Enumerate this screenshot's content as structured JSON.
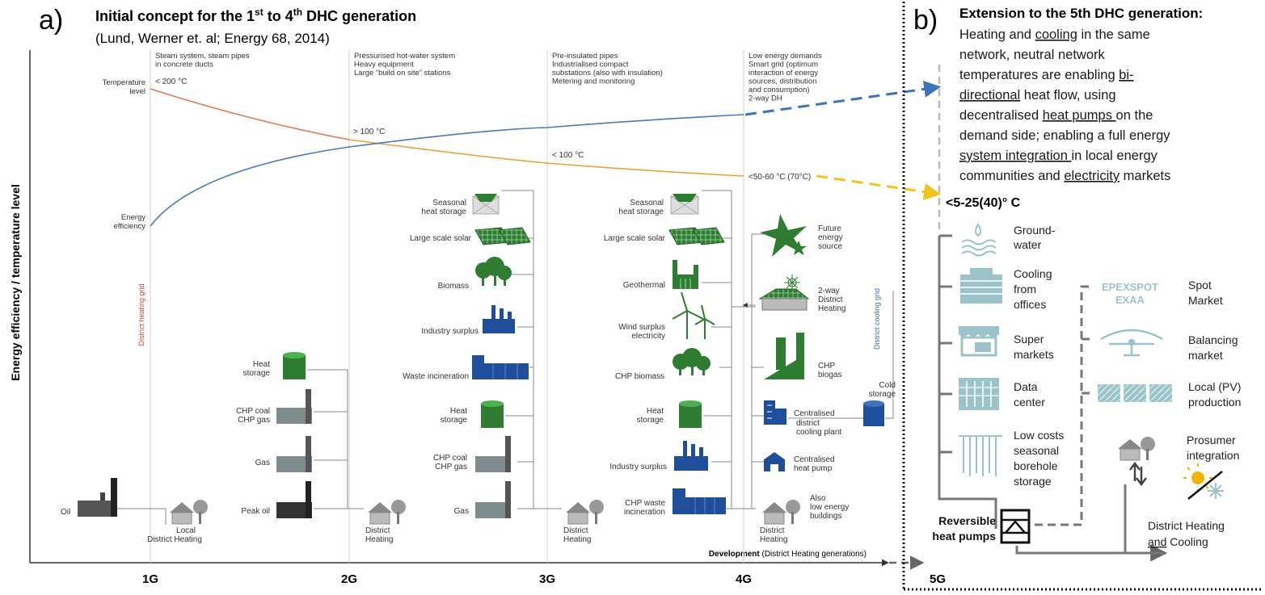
{
  "panel_a": {
    "letter": "a)",
    "title_prefix": "Initial concept for the 1",
    "title_sup1": "st",
    "title_mid": " to 4",
    "title_sup2": "th",
    "title_suffix": " DHC generation",
    "citation": "(Lund, Werner et. al; Energy 68, 2014)",
    "y_axis_label": "Energy efficiency / temperature level",
    "x_axis_label_bold": "Development",
    "x_axis_label_rest": " (District Heating generations)",
    "generations": [
      "1G",
      "2G",
      "3G",
      "4G",
      "5G"
    ],
    "curve_labels": {
      "temperature": [
        "Temperature",
        "level"
      ],
      "efficiency": [
        "Energy",
        "efficiency"
      ]
    },
    "temperatures": {
      "g1": "< 200 °C",
      "g2": "> 100 °C",
      "g3": "< 100 °C",
      "g4": "<50-60 °C (70°C)"
    },
    "descriptions": {
      "g1": [
        "Steam system, steam pipes",
        "in concrete ducts"
      ],
      "g2": [
        "Pressurised hot-water system",
        "Heavy equipment",
        "Large “build on site” stations"
      ],
      "g3": [
        "Pre-insulated pipes",
        "Industrialised compact",
        "substations (also with insulation)",
        "Metering and monitoring"
      ],
      "g4": [
        "Low energy demands",
        "Smart grid (optimum",
        "interaction of energy",
        "sources, distribution",
        "and consumption)",
        "2-way DH"
      ]
    },
    "grid_labels": {
      "heating": "District heating grid",
      "cooling": "District cooling grid"
    },
    "g1_items": {
      "oil": "Oil",
      "local_dh": [
        "Local",
        "District Heating"
      ]
    },
    "g2_items": {
      "heat_storage": [
        "Heat",
        "storage"
      ],
      "chp_coal": [
        "CHP coal",
        "CHP gas"
      ],
      "gas": "Gas",
      "peak_oil": "Peak oil",
      "district_heating": [
        "District",
        "Heating"
      ]
    },
    "g3_items": {
      "seasonal": [
        "Seasonal",
        "heat storage"
      ],
      "solar": "Large scale solar",
      "biomass": "Biomass",
      "industry": "Industry surplus",
      "waste": "Waste incineration",
      "heat_storage": [
        "Heat",
        "storage"
      ],
      "chp_coal": [
        "CHP coal",
        "CHP gas"
      ],
      "gas": "Gas",
      "district_heating": [
        "District",
        "Heating"
      ]
    },
    "g4_left": {
      "seasonal": [
        "Seasonal",
        "heat storage"
      ],
      "solar": "Large scale solar",
      "geothermal": "Geothermal",
      "wind": [
        "Wind surplus",
        "electricity"
      ],
      "chp_biomass": "CHP biomass",
      "heat_storage": [
        "Heat",
        "storage"
      ],
      "industry": "Industry surplus",
      "chp_waste": [
        "CHP waste",
        "incineration"
      ]
    },
    "g4_right": {
      "future": [
        "Future",
        "energy",
        "source"
      ],
      "two_way": [
        "2-way",
        "District",
        "Heating"
      ],
      "chp_biogas": [
        "CHP",
        "biogas"
      ],
      "cooling_plant": [
        "Centralised",
        "district",
        "cooling plant"
      ],
      "heat_pump": [
        "Centralised",
        "heat pump"
      ],
      "low_energy": [
        "Also",
        "low energy",
        "buildings"
      ],
      "district_heating": [
        "District",
        "Heating"
      ],
      "cold_storage": [
        "Cold",
        "storage"
      ]
    }
  },
  "panel_b": {
    "letter": "b)",
    "title": "Extension to the 5th DHC generation:",
    "body_lines": [
      [
        {
          "t": "Heating and ",
          "u": false
        },
        {
          "t": "cooling",
          "u": true
        },
        {
          "t": " in the same",
          "u": false
        }
      ],
      [
        {
          "t": "network, neutral network",
          "u": false
        }
      ],
      [
        {
          "t": "temperatures are enabling ",
          "u": false
        },
        {
          "t": "bi-",
          "u": true
        }
      ],
      [
        {
          "t": "directional",
          "u": true
        },
        {
          "t": " heat flow, using",
          "u": false
        }
      ],
      [
        {
          "t": "decentralised ",
          "u": false
        },
        {
          "t": "heat pumps ",
          "u": true
        },
        {
          "t": "on the",
          "u": false
        }
      ],
      [
        {
          "t": "demand side; enabling a full energy",
          "u": false
        }
      ],
      [
        {
          "t": "system integration ",
          "u": true
        },
        {
          "t": "in local energy",
          "u": false
        }
      ],
      [
        {
          "t": "communities and ",
          "u": false
        },
        {
          "t": "electricity",
          "u": true
        },
        {
          "t": " markets",
          "u": false
        }
      ]
    ],
    "temperature": "<5-25(40)° C",
    "sources": {
      "groundwater": [
        "Ground-",
        "water"
      ],
      "cooling": [
        "Cooling",
        "from",
        "offices"
      ],
      "super": [
        "Super",
        "markets"
      ],
      "data": [
        "Data",
        "center"
      ],
      "borehole": [
        "Low costs",
        "seasonal",
        "borehole",
        "storage"
      ]
    },
    "markets": {
      "epex_logo": [
        "EPEXSPOT",
        "EXAA"
      ],
      "spot": [
        "Spot",
        "Market"
      ],
      "balancing": [
        "Balancing",
        "market"
      ],
      "local_pv": [
        "Local (PV)",
        "production"
      ],
      "prosumer": [
        "Prosumer",
        "integration"
      ]
    },
    "reversible": [
      "Reversible",
      "heat pumps"
    ],
    "dhc": [
      "District Heating",
      "and Cooling"
    ],
    "dhc_underlined_word": "and",
    "dhc_rest": " Cooling"
  },
  "colors": {
    "temperature_curve": "#e07a5f",
    "temperature_curve_late": "#e9a23b",
    "efficiency_curve": "#4a7ab5",
    "heat_dash": "#f0c419",
    "eff_dash": "#3d73b8",
    "green": "#2e7d32",
    "blue": "#1f4e9a",
    "grey_icon": "#7f8c8d",
    "teal": "#9cc3c9",
    "line": "#555555"
  }
}
